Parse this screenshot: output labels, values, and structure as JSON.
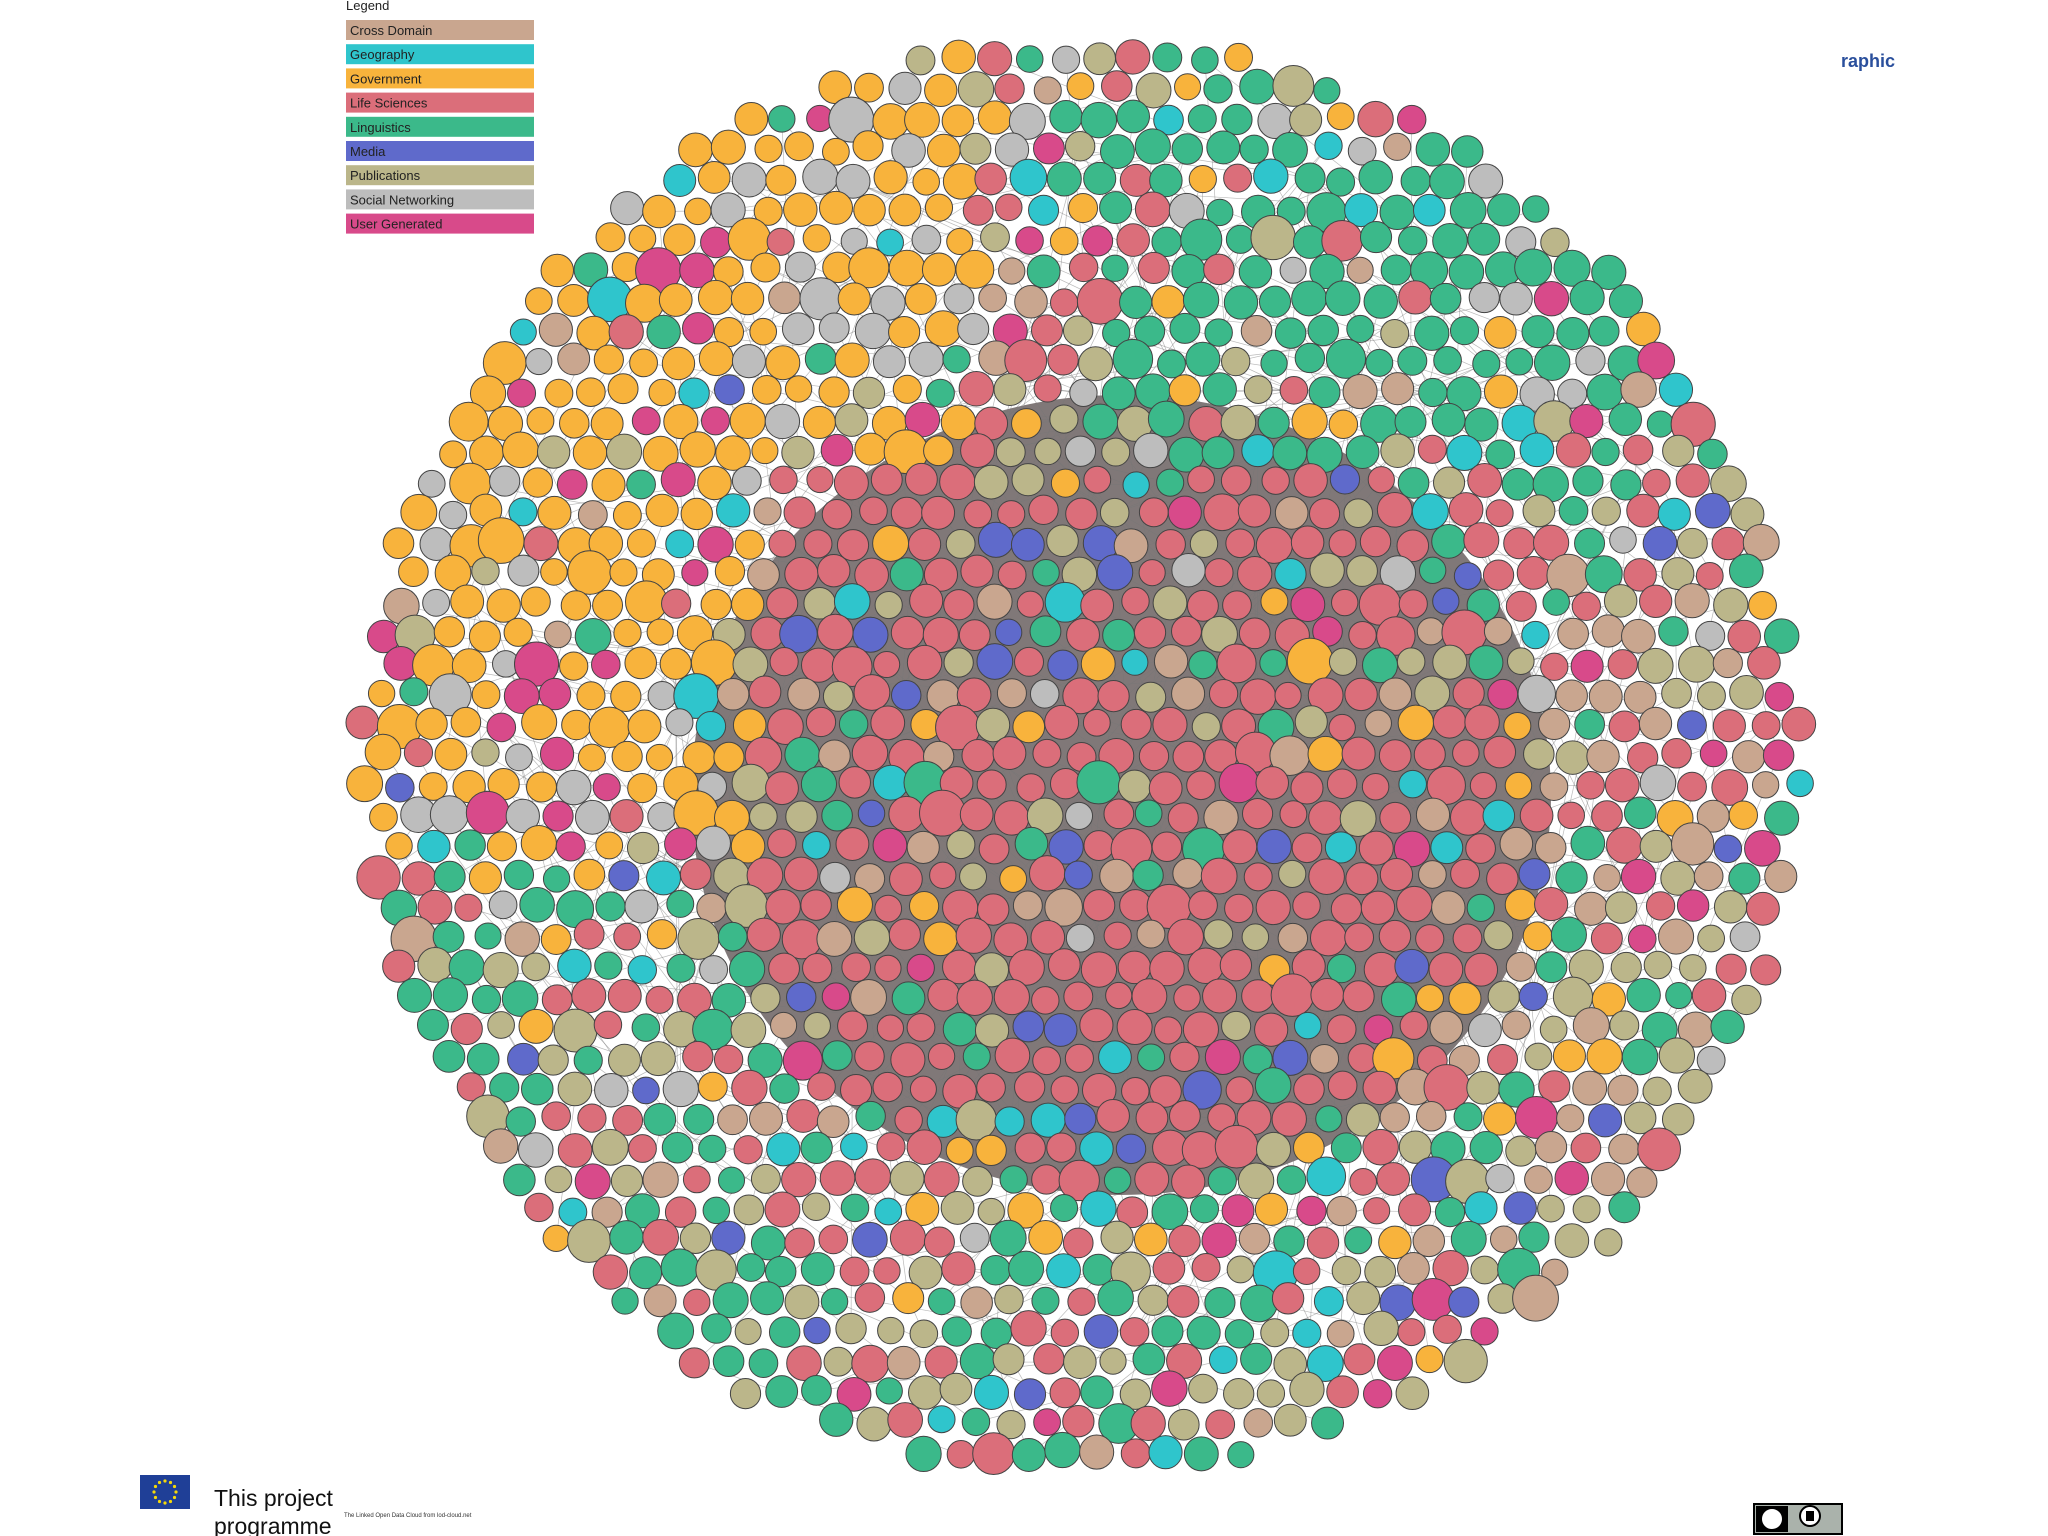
{
  "legend": {
    "title": "Legend",
    "items": [
      {
        "label": "Cross Domain",
        "color": "#c9a68f"
      },
      {
        "label": "Geography",
        "color": "#2fc5cc"
      },
      {
        "label": "Government",
        "color": "#f8b33c"
      },
      {
        "label": "Life Sciences",
        "color": "#db6e7a"
      },
      {
        "label": "Linguistics",
        "color": "#3bb98a"
      },
      {
        "label": "Media",
        "color": "#5f6acb"
      },
      {
        "label": "Publications",
        "color": "#bbb68a"
      },
      {
        "label": "Social Networking",
        "color": "#bdbdbd"
      },
      {
        "label": "User Generated",
        "color": "#d84a8a"
      }
    ]
  },
  "header_fragment": "raphic",
  "footer": {
    "line1": "This project",
    "line2": "programme",
    "caption": "The Linked Open Data Cloud from lod-cloud.net"
  }
}
